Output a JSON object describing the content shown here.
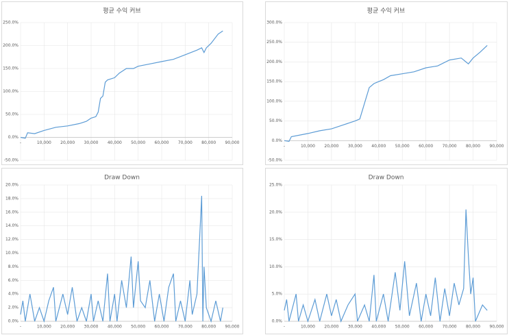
{
  "chart_data": [
    {
      "type": "line",
      "title": "평균 수익 커브",
      "color": "#5b9bd5",
      "grid": true,
      "x_labels_at_zero": true,
      "x": [
        0,
        2000,
        3000,
        6000,
        10000,
        15000,
        20000,
        25000,
        28000,
        30000,
        32000,
        33000,
        34000,
        35000,
        36000,
        37000,
        40000,
        42000,
        45000,
        48000,
        50000,
        55000,
        60000,
        65000,
        70000,
        75000,
        77000,
        78000,
        79000,
        81000,
        84000,
        86000
      ],
      "values": [
        0,
        -2,
        10,
        8,
        15,
        22,
        25,
        30,
        35,
        42,
        45,
        55,
        85,
        90,
        120,
        125,
        130,
        140,
        150,
        150,
        155,
        160,
        165,
        170,
        180,
        190,
        195,
        185,
        195,
        205,
        225,
        232
      ],
      "xlim": [
        0,
        90000
      ],
      "xticks": [
        {
          "value": 0,
          "label": "-"
        },
        {
          "value": 10000,
          "label": "10,000"
        },
        {
          "value": 20000,
          "label": "20,000"
        },
        {
          "value": 30000,
          "label": "30,000"
        },
        {
          "value": 40000,
          "label": "40,000"
        },
        {
          "value": 50000,
          "label": "50,000"
        },
        {
          "value": 60000,
          "label": "60,000"
        },
        {
          "value": 70000,
          "label": "70,000"
        },
        {
          "value": 80000,
          "label": "80,000"
        },
        {
          "value": 90000,
          "label": "90,000"
        }
      ],
      "ylim": [
        -50,
        250
      ],
      "yticks": [
        {
          "value": -50,
          "label": "-50.0%"
        },
        {
          "value": 0,
          "label": "0.0%"
        },
        {
          "value": 50,
          "label": "50.0%"
        },
        {
          "value": 100,
          "label": "100.0%"
        },
        {
          "value": 150,
          "label": "150.0%"
        },
        {
          "value": 200,
          "label": "200.0%"
        },
        {
          "value": 250,
          "label": "250.0%"
        }
      ]
    },
    {
      "type": "line",
      "title": "평균 수익 커브",
      "color": "#5b9bd5",
      "grid": true,
      "x_labels_at_zero": true,
      "x": [
        0,
        2000,
        3000,
        10000,
        15000,
        20000,
        25000,
        30000,
        32000,
        34000,
        36000,
        38000,
        40000,
        42000,
        45000,
        50000,
        55000,
        60000,
        65000,
        70000,
        75000,
        77000,
        78000,
        80000,
        83000,
        86000
      ],
      "values": [
        0,
        -2,
        10,
        18,
        25,
        30,
        40,
        50,
        55,
        95,
        135,
        145,
        150,
        155,
        165,
        170,
        175,
        185,
        190,
        205,
        210,
        200,
        195,
        210,
        225,
        242
      ],
      "xlim": [
        0,
        90000
      ],
      "xticks": [
        {
          "value": 0,
          "label": "-"
        },
        {
          "value": 10000,
          "label": "10,000"
        },
        {
          "value": 20000,
          "label": "20,000"
        },
        {
          "value": 30000,
          "label": "30,000"
        },
        {
          "value": 40000,
          "label": "40,000"
        },
        {
          "value": 50000,
          "label": "50,000"
        },
        {
          "value": 60000,
          "label": "60,000"
        },
        {
          "value": 70000,
          "label": "70,000"
        },
        {
          "value": 80000,
          "label": "80,000"
        },
        {
          "value": 90000,
          "label": "90,000"
        }
      ],
      "ylim": [
        -50,
        300
      ],
      "yticks": [
        {
          "value": -50,
          "label": "-50.0%"
        },
        {
          "value": 0,
          "label": "0.0%"
        },
        {
          "value": 50,
          "label": "50.0%"
        },
        {
          "value": 100,
          "label": "100.0%"
        },
        {
          "value": 150,
          "label": "150.0%"
        },
        {
          "value": 200,
          "label": "200.0%"
        },
        {
          "value": 250,
          "label": "250.0%"
        },
        {
          "value": 300,
          "label": "300.0%"
        }
      ]
    },
    {
      "type": "line",
      "title": "Draw Down",
      "color": "#5b9bd5",
      "grid": true,
      "x_labels_at_zero": false,
      "x": [
        0,
        1000,
        2000,
        4000,
        5000,
        6000,
        8000,
        10000,
        12000,
        14000,
        15000,
        18000,
        20000,
        22000,
        24000,
        26000,
        28000,
        30000,
        31000,
        33000,
        35000,
        37000,
        38000,
        40000,
        41000,
        43000,
        45000,
        47000,
        48000,
        50000,
        51000,
        53000,
        55000,
        57000,
        59000,
        61000,
        63000,
        65000,
        66000,
        68000,
        70000,
        72000,
        73000,
        75000,
        77000,
        77500,
        78000,
        79000,
        81000,
        83000,
        85000,
        86000
      ],
      "values": [
        1,
        3,
        0,
        4,
        2,
        0,
        2,
        0,
        3,
        5,
        0,
        4,
        1,
        5,
        0,
        2,
        0,
        4,
        0,
        3,
        0,
        7,
        0,
        4,
        0,
        6,
        2,
        9.5,
        2,
        8.8,
        3,
        2,
        6,
        0,
        4,
        0,
        5,
        7,
        0,
        3,
        0,
        6,
        1,
        4,
        18.4,
        0,
        8,
        2,
        0,
        3,
        0,
        2
      ],
      "xlim": [
        0,
        90000
      ],
      "xticks": [
        {
          "value": 0,
          "label": "-"
        },
        {
          "value": 10000,
          "label": "10,000"
        },
        {
          "value": 20000,
          "label": "20,000"
        },
        {
          "value": 30000,
          "label": "30,000"
        },
        {
          "value": 40000,
          "label": "40,000"
        },
        {
          "value": 50000,
          "label": "50,000"
        },
        {
          "value": 60000,
          "label": "60,000"
        },
        {
          "value": 70000,
          "label": "70,000"
        },
        {
          "value": 80000,
          "label": "80,000"
        },
        {
          "value": 90000,
          "label": "90,000"
        }
      ],
      "ylim": [
        0,
        20
      ],
      "yticks": [
        {
          "value": 0,
          "label": "0.0%"
        },
        {
          "value": 2,
          "label": "2.0%"
        },
        {
          "value": 4,
          "label": "4.0%"
        },
        {
          "value": 6,
          "label": "6.0%"
        },
        {
          "value": 8,
          "label": "8.0%"
        },
        {
          "value": 10,
          "label": "10.0%"
        },
        {
          "value": 12,
          "label": "12.0%"
        },
        {
          "value": 14,
          "label": "14.0%"
        },
        {
          "value": 16,
          "label": "16.0%"
        },
        {
          "value": 18,
          "label": "18.0%"
        },
        {
          "value": 20,
          "label": "20.0%"
        }
      ]
    },
    {
      "type": "line",
      "title": "Draw Down",
      "color": "#5b9bd5",
      "grid": true,
      "x_labels_at_zero": false,
      "x": [
        0,
        1000,
        2000,
        5000,
        6000,
        8000,
        10000,
        13000,
        15000,
        18000,
        20000,
        22000,
        24000,
        27000,
        30000,
        31000,
        34000,
        36000,
        38000,
        39000,
        42000,
        44000,
        47000,
        49000,
        51000,
        53000,
        56000,
        58000,
        60000,
        62000,
        64000,
        66000,
        68000,
        70000,
        72000,
        74000,
        76000,
        77000,
        78000,
        79000,
        80000,
        81000,
        84000,
        86000
      ],
      "values": [
        2,
        4,
        0,
        5,
        0,
        3,
        0,
        4,
        0,
        5,
        1,
        4,
        0,
        3,
        5,
        0,
        3,
        0,
        8.5,
        0,
        5,
        0,
        9,
        2,
        11,
        1,
        7,
        0,
        5,
        1,
        8,
        0,
        6,
        1,
        7,
        3,
        6,
        20.5,
        12,
        5,
        8,
        0,
        3,
        2
      ],
      "xlim": [
        0,
        90000
      ],
      "xticks": [
        {
          "value": 0,
          "label": "-"
        },
        {
          "value": 10000,
          "label": "10,000"
        },
        {
          "value": 20000,
          "label": "20,000"
        },
        {
          "value": 30000,
          "label": "30,000"
        },
        {
          "value": 40000,
          "label": "40,000"
        },
        {
          "value": 50000,
          "label": "50,000"
        },
        {
          "value": 60000,
          "label": "60,000"
        },
        {
          "value": 70000,
          "label": "70,000"
        },
        {
          "value": 80000,
          "label": "80,000"
        },
        {
          "value": 90000,
          "label": "90,000"
        }
      ],
      "ylim": [
        0,
        25
      ],
      "yticks": [
        {
          "value": 0,
          "label": "0.0%"
        },
        {
          "value": 5,
          "label": "5.0%"
        },
        {
          "value": 10,
          "label": "10.0%"
        },
        {
          "value": 15,
          "label": "15.0%"
        },
        {
          "value": 20,
          "label": "20.0%"
        },
        {
          "value": 25,
          "label": "25.0%"
        }
      ]
    }
  ]
}
